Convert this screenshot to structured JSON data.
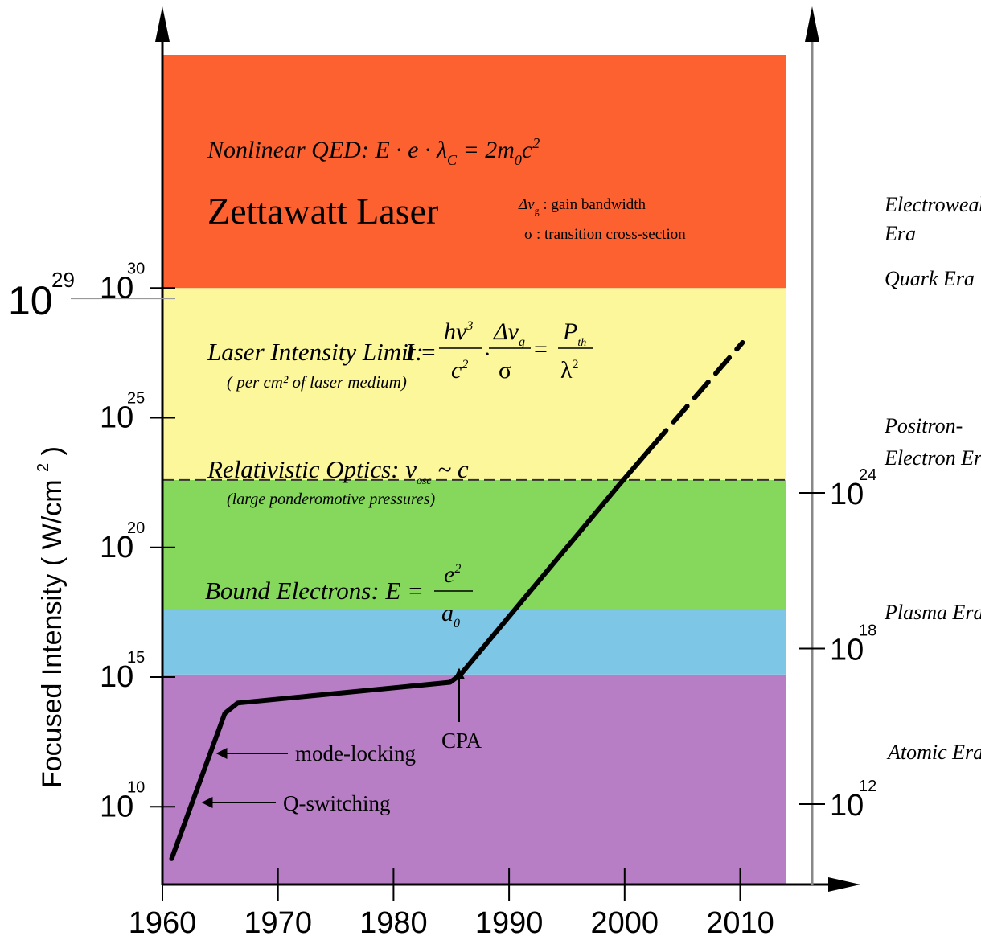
{
  "chart_data": {
    "type": "line",
    "ylabel": "Focused Intensity ( W/cm",
    "ylabel_sup": "2",
    "ylabel_close": ")",
    "x_ticks": [
      "1960",
      "1970",
      "1980",
      "1990",
      "2000",
      "2010"
    ],
    "x_range": [
      1960,
      2014
    ],
    "y_scale": "log",
    "y_range_exponent": [
      7,
      39
    ],
    "y_ticks": [
      {
        "base": "10",
        "exp": "10",
        "value_exp": 10
      },
      {
        "base": "10",
        "exp": "15",
        "value_exp": 15
      },
      {
        "base": "10",
        "exp": "20",
        "value_exp": 20
      },
      {
        "base": "10",
        "exp": "25",
        "value_exp": 25
      },
      {
        "base": "10",
        "exp": "30",
        "value_exp": 30
      }
    ],
    "highlight_tick": {
      "base": "10",
      "exp": "29",
      "value_exp": 29.6
    },
    "right_ticks": [
      {
        "base": "10",
        "exp": "12",
        "value_exp": 10.1
      },
      {
        "base": "10",
        "exp": "18",
        "value_exp": 16.1
      },
      {
        "base": "10",
        "exp": "24",
        "value_exp": 22.1
      }
    ],
    "bands": [
      {
        "name": "purple",
        "from": 7,
        "to": 15.1,
        "color": "#b77ec6"
      },
      {
        "name": "blue",
        "from": 15.1,
        "to": 17.6,
        "color": "#7ec6e6"
      },
      {
        "name": "green",
        "from": 17.6,
        "to": 22.6,
        "color": "#85d85b"
      },
      {
        "name": "yellow",
        "from": 22.6,
        "to": 30,
        "color": "#fbf79a"
      },
      {
        "name": "red",
        "from": 30,
        "to": 34,
        "color": "#fd6130"
      }
    ],
    "series": [
      {
        "style": "solid",
        "points": [
          [
            1960.8,
            8.0
          ],
          [
            1965.4,
            13.6
          ],
          [
            1966.5,
            14.0
          ],
          [
            1984.9,
            14.8
          ],
          [
            1985.8,
            15.1
          ],
          [
            1999.5,
            22.4
          ],
          [
            2002.4,
            23.9
          ]
        ]
      },
      {
        "style": "dashed",
        "points": [
          [
            2002.4,
            23.9
          ],
          [
            2010.2,
            27.9
          ]
        ]
      }
    ],
    "region_labels": {
      "qed": "Nonlinear QED:  E · e · λ",
      "qed_sub": "C",
      "qed_rhs": " = 2m",
      "qed_rhs_sub": "0",
      "qed_rhs_c": "c",
      "qed_rhs_sup": "2",
      "zettawatt": "Zettawatt Laser",
      "gain_legend": "Δν",
      "gain_legend_sub": "g",
      "gain_legend_text": " : gain bandwidth",
      "sigma_legend": "σ   : transition cross-section",
      "limit": "Laser Intensity Limit:",
      "limit_note": "( per cm² of laser medium)",
      "limit_I": "I =",
      "limit_num1": "hν",
      "limit_num1_sup": "3",
      "limit_den1": "c",
      "limit_den1_sup": "2",
      "limit_dot": "·",
      "limit_num2": "Δν",
      "limit_num2_sub": "g",
      "limit_den2": "σ",
      "limit_eq": "=",
      "limit_num3": "P",
      "limit_num3_sub": "th",
      "limit_den3": "λ",
      "limit_den3_sup": "2",
      "relativistic": "Relativistic Optics:  ν",
      "relativistic_sub": "osc",
      "relativistic_rhs": " ~ c",
      "relativistic_note": "(large ponderomotive pressures)",
      "bound": "Bound Electrons:   E =",
      "bound_num": "e",
      "bound_num_sup": "2",
      "bound_den": "a",
      "bound_den_sub": "0"
    },
    "annotations": [
      {
        "text": "mode-locking"
      },
      {
        "text": "Q-switching"
      },
      {
        "text": "CPA"
      }
    ],
    "eras": [
      {
        "line1": "Electroweak",
        "line2": "Era"
      },
      {
        "line1": "Quark Era",
        "line2": ""
      },
      {
        "line1": "Positron-",
        "line2": "Electron Era"
      },
      {
        "line1": "Plasma Era",
        "line2": ""
      },
      {
        "line1": "Atomic Era",
        "line2": ""
      }
    ]
  }
}
